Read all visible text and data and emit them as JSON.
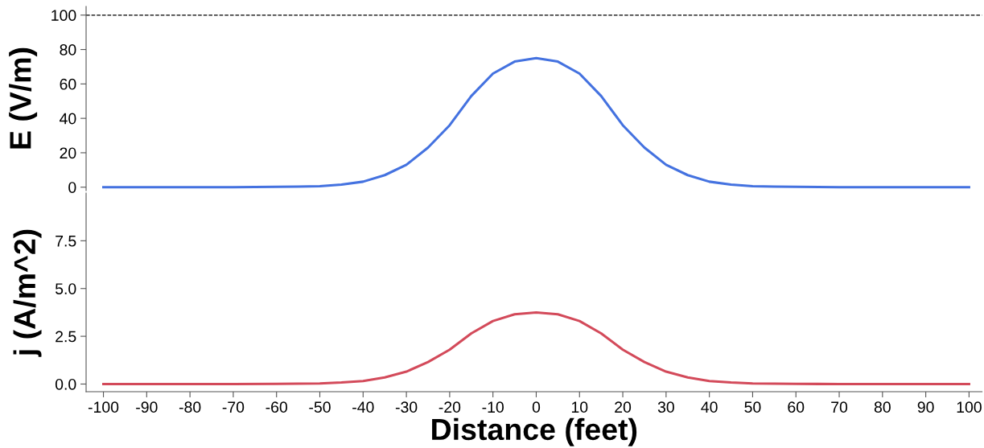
{
  "chart_data": [
    {
      "type": "line",
      "ylabel": "E (V/m)",
      "x": [
        -100,
        -90,
        -80,
        -70,
        -60,
        -55,
        -50,
        -45,
        -40,
        -35,
        -30,
        -25,
        -20,
        -15,
        -10,
        -5,
        0,
        5,
        10,
        15,
        20,
        25,
        30,
        35,
        40,
        45,
        50,
        55,
        60,
        70,
        80,
        90,
        100
      ],
      "series": [
        {
          "color": "#4472e0",
          "values": [
            0,
            0,
            0,
            0,
            0.2,
            0.3,
            0.6,
            1.5,
            3.2,
            7,
            13,
            23,
            36,
            53,
            66,
            73,
            75,
            73,
            66,
            53,
            36,
            23,
            13,
            7,
            3.2,
            1.5,
            0.6,
            0.3,
            0.2,
            0,
            0,
            0,
            0
          ]
        }
      ],
      "xlim": [
        -104,
        103
      ],
      "ylim": [
        -2,
        105
      ],
      "yticks": [
        0,
        20,
        40,
        60,
        80,
        100
      ],
      "tick_labels": "y",
      "line_style": "solid",
      "marker": "none",
      "grid": false,
      "legend": false,
      "ref_lines": [
        {
          "axis": "y",
          "value": 100,
          "color": "#000000",
          "line_style": "dashed"
        }
      ]
    },
    {
      "type": "line",
      "ylabel": "j (A/m^2)",
      "xlabel": "Distance (feet)",
      "x": [
        -100,
        -90,
        -80,
        -70,
        -60,
        -55,
        -50,
        -45,
        -40,
        -35,
        -30,
        -25,
        -20,
        -15,
        -10,
        -5,
        0,
        5,
        10,
        15,
        20,
        25,
        30,
        35,
        40,
        45,
        50,
        55,
        60,
        70,
        80,
        90,
        100
      ],
      "series": [
        {
          "color": "#d34a5a",
          "values": [
            0,
            0,
            0,
            0,
            0.01,
            0.02,
            0.03,
            0.08,
            0.16,
            0.35,
            0.65,
            1.15,
            1.8,
            2.65,
            3.3,
            3.65,
            3.75,
            3.65,
            3.3,
            2.65,
            1.8,
            1.15,
            0.65,
            0.35,
            0.16,
            0.08,
            0.03,
            0.02,
            0.01,
            0,
            0,
            0,
            0
          ]
        }
      ],
      "xlim": [
        -104,
        103
      ],
      "xticks": [
        -100,
        -90,
        -80,
        -70,
        -60,
        -50,
        -40,
        -30,
        -20,
        -10,
        0,
        10,
        20,
        30,
        40,
        50,
        60,
        70,
        80,
        90,
        100
      ],
      "ylim": [
        -0.4,
        10
      ],
      "yticks": [
        {
          "value": 0,
          "label": "0.0"
        },
        {
          "value": 2.5,
          "label": "2.5"
        },
        {
          "value": 5,
          "label": "5.0"
        },
        {
          "value": 7.5,
          "label": "7.5"
        }
      ],
      "line_style": "solid",
      "marker": "none",
      "grid": false,
      "legend": false
    }
  ]
}
